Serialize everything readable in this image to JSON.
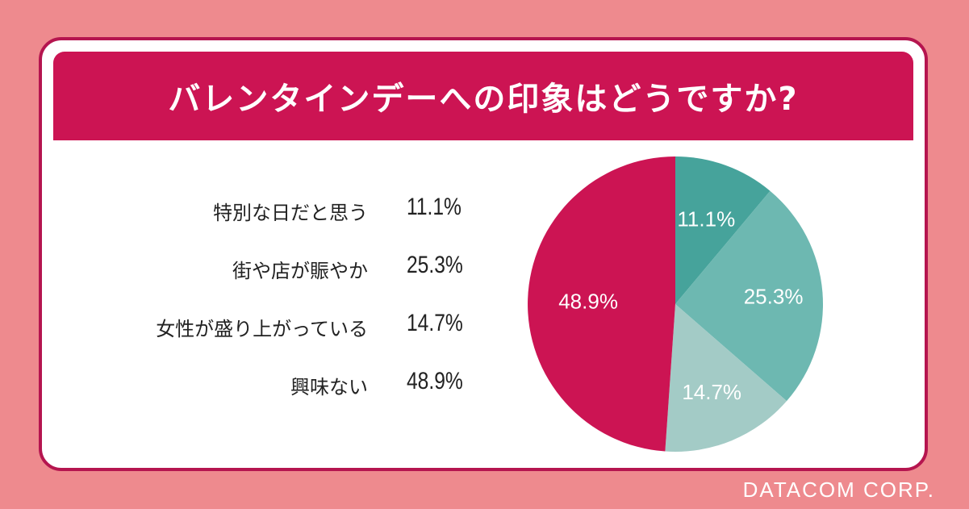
{
  "header": {
    "title": "バレンタインデーへの印象はどうですか?"
  },
  "footer": {
    "brand": "DATACOM CORP."
  },
  "colors": {
    "background": "#ee8a8e",
    "header": "#cc1453",
    "card_border": "#b5154f",
    "slices": [
      "#46a39b",
      "#6db8b1",
      "#a3cbc6",
      "#cc1453"
    ]
  },
  "chart_data": {
    "type": "pie",
    "title": "バレンタインデーへの印象はどうですか?",
    "categories": [
      "特別な日だと思う",
      "街や店が賑やか",
      "女性が盛り上がっている",
      "興味ない"
    ],
    "values": [
      11.1,
      25.3,
      14.7,
      48.9
    ],
    "labels": [
      "11.1%",
      "25.3%",
      "14.7%",
      "48.9%"
    ],
    "legend_placement": "left",
    "start": "12 o'clock",
    "direction": "clockwise"
  }
}
